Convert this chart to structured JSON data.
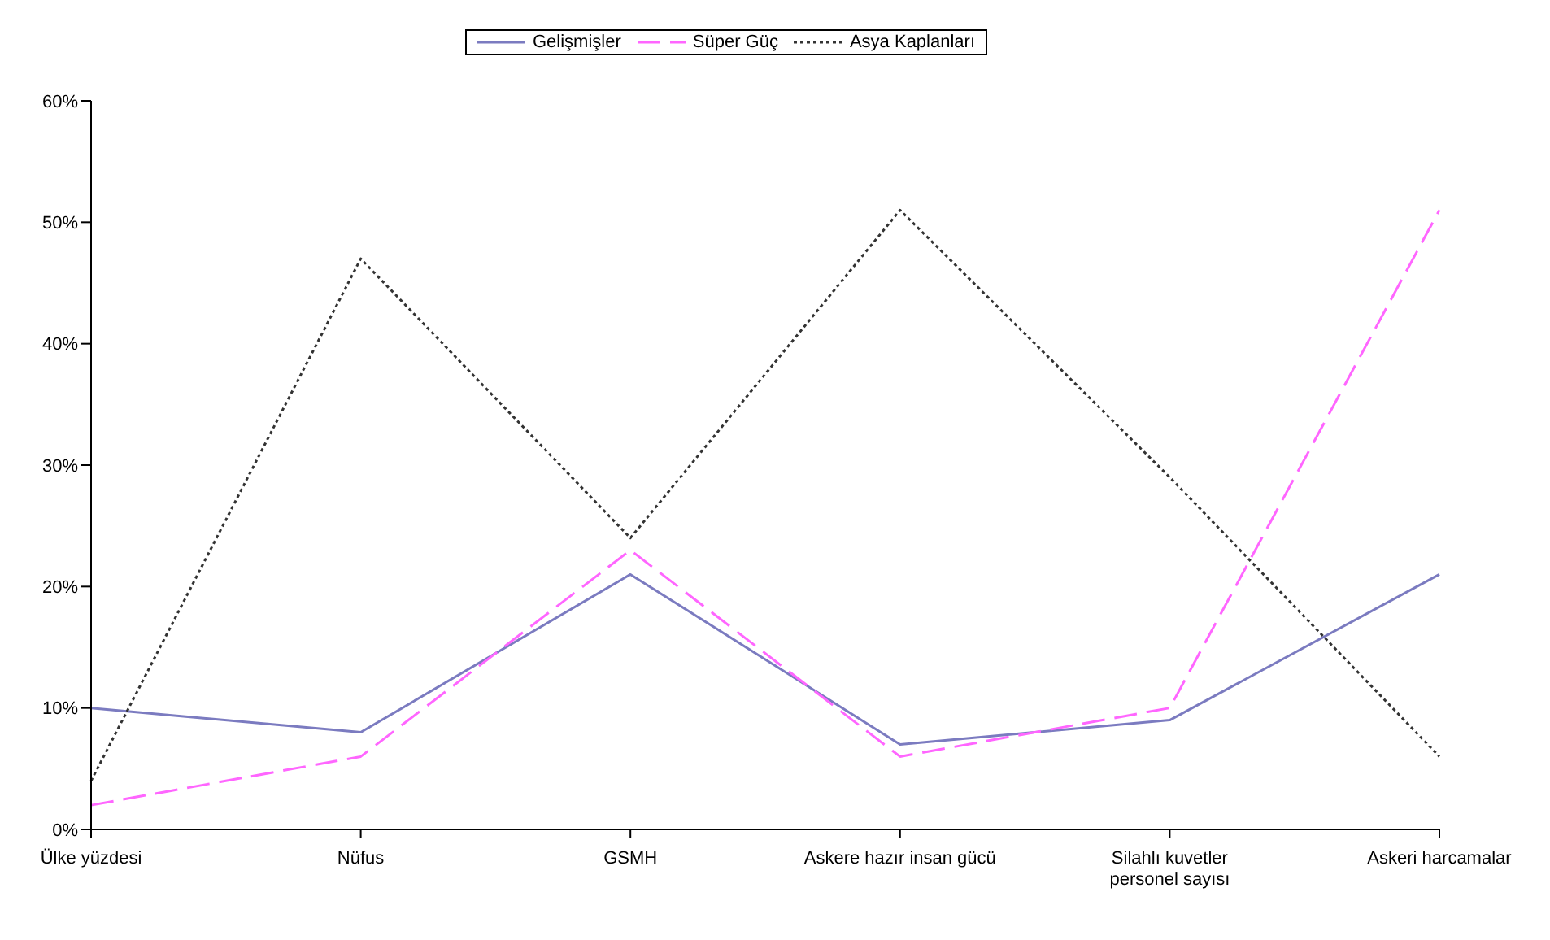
{
  "chart_data": {
    "type": "line",
    "categories": [
      "Ülke yüzdesi",
      "Nüfus",
      "GSMH",
      "Askere hazır insan gücü",
      "Silahlı kuvetler personel sayısı",
      "Askeri harcamalar"
    ],
    "series": [
      {
        "name": "Gelişmişler",
        "color": "#7b7bc0",
        "line_style": "solid",
        "values": [
          10,
          8,
          21,
          7,
          9,
          21
        ]
      },
      {
        "name": "Süper Güç",
        "color": "#ff66ff",
        "line_style": "dashed",
        "values": [
          2,
          6,
          23,
          6,
          10,
          51
        ]
      },
      {
        "name": "Asya Kaplanları",
        "color": "#333333",
        "line_style": "dotted",
        "values": [
          4,
          47,
          24,
          51,
          29,
          6
        ]
      }
    ],
    "ylim": [
      0,
      60
    ],
    "yticks": [
      {
        "value": 0,
        "label": "0%"
      },
      {
        "value": 10,
        "label": "10%"
      },
      {
        "value": 20,
        "label": "20%"
      },
      {
        "value": 30,
        "label": "30%"
      },
      {
        "value": 40,
        "label": "40%"
      },
      {
        "value": 50,
        "label": "50%"
      },
      {
        "value": 60,
        "label": "60%"
      }
    ],
    "grid": false,
    "legend": "top",
    "marker": "none"
  }
}
